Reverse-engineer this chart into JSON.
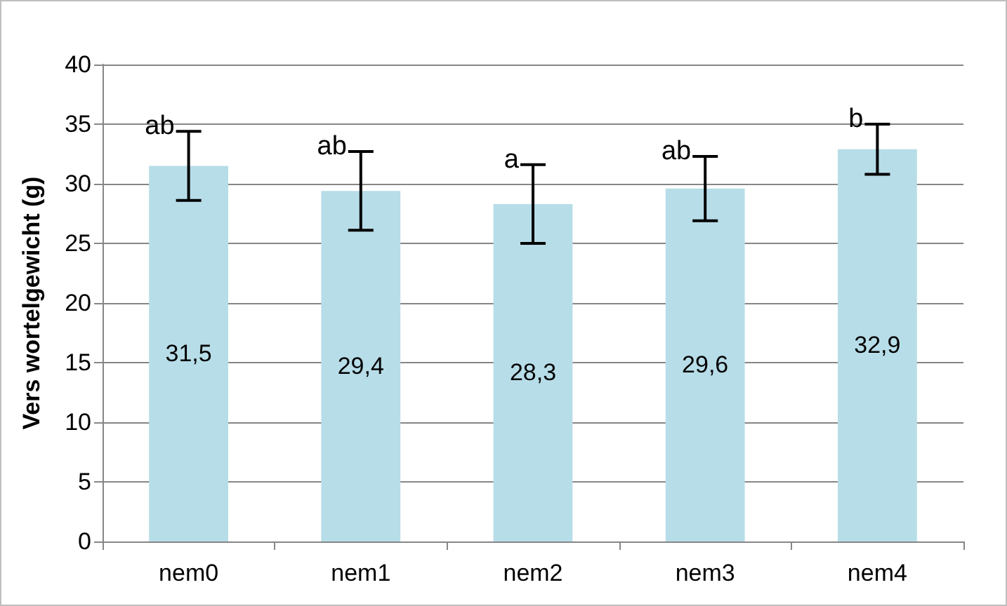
{
  "chart_data": {
    "type": "bar",
    "ylabel": "Vers wortelgewicht (g)",
    "categories": [
      "nem0",
      "nem1",
      "nem2",
      "nem3",
      "nem4"
    ],
    "values": [
      31.5,
      29.4,
      28.3,
      29.6,
      32.9
    ],
    "color": "#b7dde8",
    "errors": [
      2.9,
      3.3,
      3.3,
      2.7,
      2.1
    ],
    "value_labels": [
      "31,5",
      "29,4",
      "28,3",
      "29,6",
      "32,9"
    ],
    "ylim": [
      0,
      40
    ],
    "yticks": [
      0,
      5,
      10,
      15,
      20,
      25,
      30,
      35,
      40
    ],
    "grid": "y",
    "annotations": [
      {
        "text": "ab",
        "x": "nem0",
        "y": 34.4
      },
      {
        "text": "ab",
        "x": "nem1",
        "y": 32.7
      },
      {
        "text": "a",
        "x": "nem2",
        "y": 31.6
      },
      {
        "text": "ab",
        "x": "nem3",
        "y": 32.3
      },
      {
        "text": "b",
        "x": "nem4",
        "y": 35.0
      }
    ]
  }
}
